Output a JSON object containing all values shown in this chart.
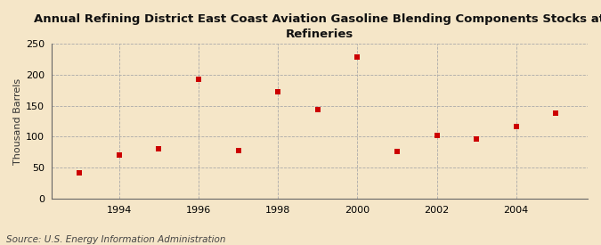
{
  "years": [
    1993,
    1994,
    1995,
    1996,
    1997,
    1998,
    1999,
    2000,
    2001,
    2002,
    2003,
    2004,
    2005
  ],
  "values": [
    42,
    70,
    80,
    193,
    78,
    172,
    143,
    229,
    76,
    102,
    97,
    117,
    138
  ],
  "title": "Annual Refining District East Coast Aviation Gasoline Blending Components Stocks at\nRefineries",
  "ylabel": "Thousand Barrels",
  "source": "Source: U.S. Energy Information Administration",
  "marker_color": "#cc0000",
  "marker": "s",
  "marker_size": 4,
  "background_color": "#f5e6c8",
  "plot_bg_color": "#f5e6c8",
  "grid_color": "#aaaaaa",
  "spine_color": "#666666",
  "ylim": [
    0,
    250
  ],
  "xlim": [
    1992.3,
    2005.8
  ],
  "yticks": [
    0,
    50,
    100,
    150,
    200,
    250
  ],
  "xticks": [
    1994,
    1996,
    1998,
    2000,
    2002,
    2004
  ],
  "title_fontsize": 9.5,
  "ylabel_fontsize": 8,
  "tick_fontsize": 8,
  "source_fontsize": 7.5
}
